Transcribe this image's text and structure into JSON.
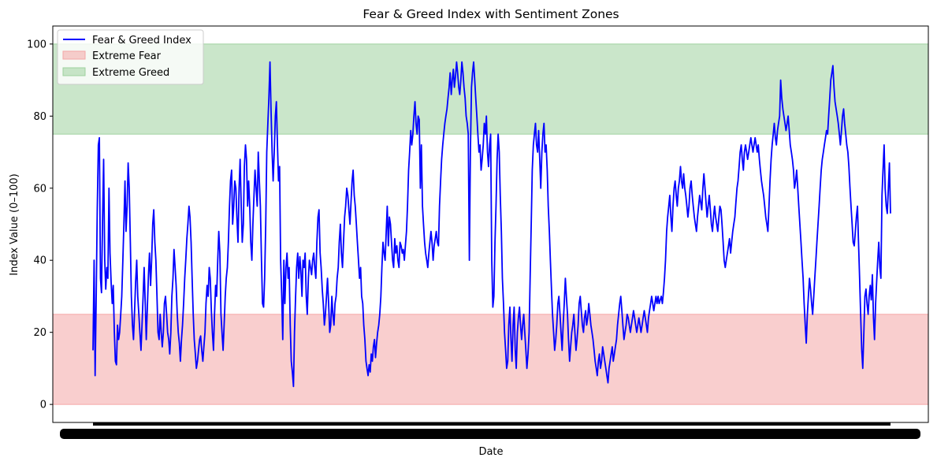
{
  "chart_data": {
    "type": "line",
    "title": "Fear & Greed Index with Sentiment Zones",
    "xlabel": "Date",
    "ylabel": "Index Value (0–100)",
    "ylim": [
      -5,
      105
    ],
    "yticks": [
      0,
      20,
      40,
      60,
      80,
      100
    ],
    "x_tick_labels_note": "dense overlapping date labels rendered illegible",
    "grid": false,
    "legend_position": "top-left",
    "zones": [
      {
        "name": "Extreme Fear",
        "from": 0,
        "to": 25,
        "color": "#f4a6a6"
      },
      {
        "name": "Extreme Greed",
        "from": 75,
        "to": 100,
        "color": "#9fd19f"
      }
    ],
    "series": [
      {
        "name": "Fear & Greed Index",
        "color": "#0000ff",
        "values": [
          15,
          40,
          8,
          30,
          54,
          72,
          74,
          35,
          31,
          52,
          68,
          40,
          32,
          38,
          35,
          60,
          42,
          34,
          28,
          33,
          20,
          12,
          11,
          22,
          18,
          20,
          25,
          30,
          40,
          50,
          62,
          48,
          55,
          67,
          60,
          45,
          30,
          22,
          18,
          26,
          34,
          40,
          30,
          25,
          20,
          15,
          22,
          30,
          38,
          28,
          18,
          27,
          36,
          42,
          33,
          40,
          50,
          54,
          45,
          40,
          30,
          20,
          18,
          25,
          20,
          16,
          20,
          28,
          30,
          25,
          20,
          18,
          14,
          20,
          30,
          35,
          43,
          38,
          33,
          25,
          20,
          17,
          12,
          18,
          22,
          28,
          35,
          40,
          46,
          50,
          55,
          52,
          45,
          35,
          25,
          18,
          14,
          10,
          12,
          15,
          18,
          19,
          15,
          12,
          16,
          20,
          28,
          33,
          30,
          38,
          35,
          26,
          20,
          15,
          25,
          33,
          30,
          40,
          48,
          42,
          25,
          20,
          15,
          22,
          30,
          35,
          38,
          45,
          55,
          62,
          65,
          50,
          55,
          62,
          60,
          52,
          45,
          60,
          68,
          55,
          45,
          50,
          66,
          72,
          68,
          55,
          62,
          55,
          45,
          40,
          50,
          58,
          65,
          60,
          55,
          70,
          62,
          55,
          40,
          28,
          27,
          35,
          50,
          70,
          78,
          85,
          95,
          82,
          70,
          62,
          70,
          80,
          84,
          72,
          62,
          66,
          40,
          30,
          18,
          40,
          28,
          38,
          42,
          35,
          38,
          22,
          12,
          9,
          5,
          20,
          30,
          38,
          42,
          35,
          41,
          37,
          30,
          40,
          38,
          42,
          30,
          25,
          35,
          40,
          38,
          36,
          40,
          42,
          38,
          35,
          45,
          52,
          54,
          42,
          38,
          32,
          28,
          22,
          25,
          30,
          35,
          28,
          20,
          22,
          30,
          25,
          22,
          28,
          30,
          35,
          38,
          45,
          50,
          42,
          38,
          45,
          52,
          55,
          60,
          58,
          54,
          50,
          56,
          62,
          65,
          58,
          55,
          50,
          45,
          40,
          35,
          38,
          30,
          28,
          22,
          18,
          12,
          10,
          8,
          11,
          9,
          14,
          12,
          16,
          18,
          13,
          17,
          20,
          22,
          25,
          30,
          38,
          45,
          42,
          40,
          48,
          55,
          44,
          52,
          50,
          45,
          40,
          38,
          46,
          42,
          44,
          40,
          38,
          45,
          44,
          42,
          43,
          40,
          44,
          48,
          55,
          65,
          70,
          76,
          72,
          75,
          80,
          84,
          78,
          75,
          80,
          79,
          60,
          72,
          55,
          50,
          45,
          42,
          40,
          38,
          42,
          45,
          48,
          45,
          40,
          44,
          46,
          48,
          45,
          44,
          55,
          62,
          68,
          72,
          75,
          78,
          80,
          82,
          85,
          88,
          92,
          86,
          90,
          93,
          88,
          91,
          95,
          92,
          88,
          86,
          90,
          95,
          92,
          88,
          85,
          80,
          78,
          75,
          40,
          70,
          88,
          92,
          95,
          90,
          85,
          80,
          75,
          70,
          72,
          65,
          68,
          72,
          78,
          75,
          80,
          70,
          66,
          72,
          75,
          40,
          27,
          30,
          45,
          55,
          68,
          75,
          70,
          58,
          48,
          35,
          28,
          20,
          15,
          10,
          12,
          22,
          27,
          18,
          12,
          22,
          27,
          15,
          10,
          20,
          24,
          27,
          22,
          18,
          22,
          25,
          20,
          15,
          10,
          14,
          20,
          35,
          50,
          65,
          72,
          75,
          78,
          72,
          70,
          76,
          68,
          60,
          70,
          75,
          78,
          70,
          72,
          65,
          55,
          48,
          40,
          32,
          25,
          20,
          15,
          18,
          22,
          28,
          30,
          25,
          20,
          15,
          22,
          28,
          35,
          30,
          25,
          18,
          12,
          16,
          20,
          22,
          25,
          20,
          15,
          18,
          22,
          28,
          30,
          26,
          22,
          20,
          24,
          26,
          22,
          24,
          28,
          25,
          22,
          20,
          18,
          15,
          12,
          10,
          8,
          12,
          14,
          10,
          12,
          16,
          14,
          12,
          10,
          8,
          6,
          10,
          12,
          14,
          16,
          12,
          14,
          16,
          18,
          22,
          25,
          28,
          30,
          26,
          22,
          18,
          20,
          22,
          25,
          24,
          22,
          20,
          22,
          24,
          26,
          24,
          22,
          20,
          22,
          24,
          22,
          20,
          22,
          24,
          26,
          24,
          22,
          20,
          24,
          26,
          28,
          30,
          28,
          26,
          28,
          30,
          28,
          30,
          28,
          29,
          30,
          28,
          31,
          35,
          40,
          48,
          52,
          55,
          58,
          52,
          48,
          55,
          60,
          62,
          58,
          55,
          60,
          62,
          66,
          62,
          60,
          64,
          60,
          58,
          55,
          52,
          55,
          60,
          62,
          58,
          55,
          52,
          50,
          48,
          52,
          55,
          58,
          56,
          54,
          60,
          64,
          60,
          56,
          52,
          55,
          58,
          54,
          50,
          48,
          52,
          55,
          52,
          50,
          48,
          52,
          55,
          54,
          50,
          45,
          40,
          38,
          40,
          42,
          44,
          46,
          42,
          45,
          48,
          50,
          52,
          56,
          60,
          62,
          66,
          70,
          72,
          68,
          65,
          70,
          72,
          70,
          68,
          70,
          72,
          74,
          72,
          70,
          72,
          74,
          72,
          70,
          72,
          68,
          65,
          62,
          60,
          58,
          55,
          52,
          50,
          48,
          55,
          62,
          68,
          72,
          75,
          78,
          74,
          72,
          76,
          78,
          80,
          90,
          85,
          82,
          80,
          78,
          76,
          78,
          80,
          76,
          72,
          70,
          68,
          65,
          60,
          62,
          65,
          60,
          55,
          50,
          45,
          40,
          35,
          28,
          22,
          17,
          25,
          30,
          35,
          32,
          28,
          25,
          30,
          35,
          40,
          45,
          50,
          55,
          60,
          65,
          68,
          70,
          72,
          74,
          76,
          75,
          80,
          85,
          90,
          92,
          94,
          88,
          84,
          82,
          80,
          78,
          75,
          72,
          76,
          80,
          82,
          78,
          75,
          72,
          70,
          66,
          60,
          55,
          50,
          45,
          44,
          48,
          52,
          55,
          45,
          35,
          25,
          15,
          10,
          20,
          30,
          32,
          28,
          25,
          30,
          33,
          29,
          36,
          24,
          18,
          28,
          34,
          40,
          45,
          38,
          35,
          58,
          65,
          72,
          60,
          55,
          53,
          60,
          67,
          53
        ]
      }
    ]
  }
}
